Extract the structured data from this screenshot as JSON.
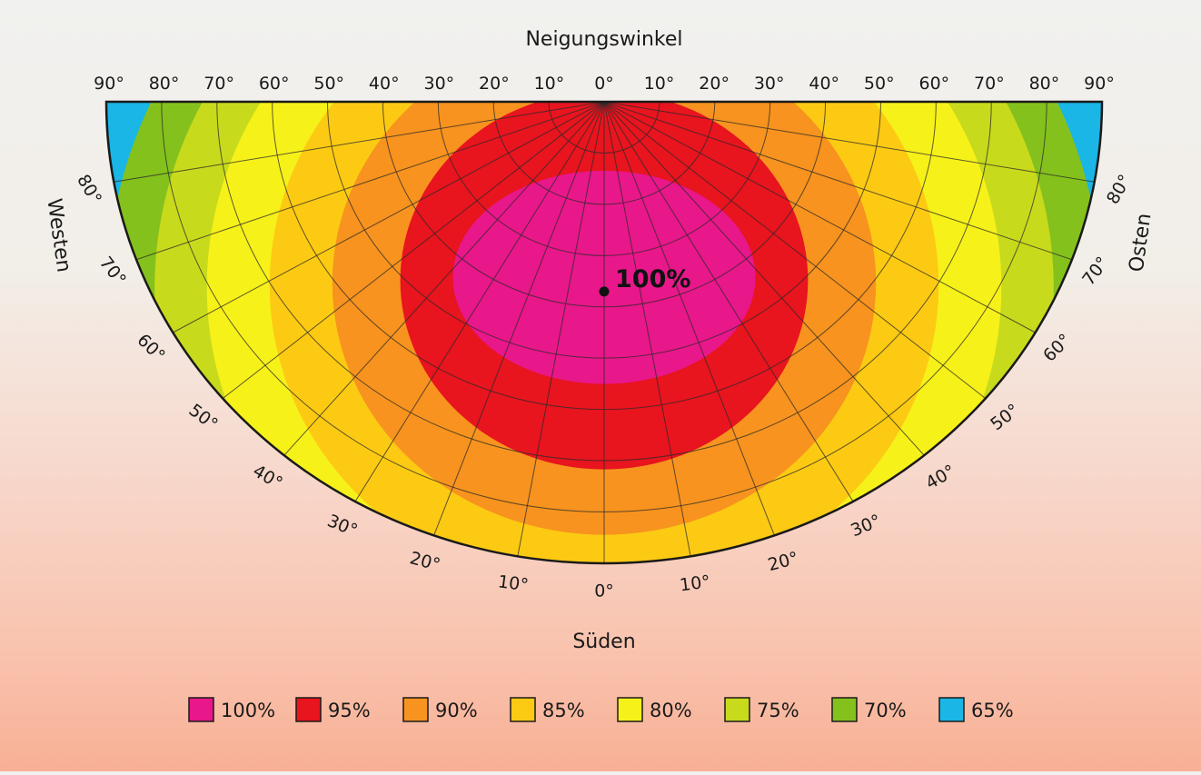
{
  "chart_data": {
    "type": "heatmap",
    "title": "Neigungswinkel",
    "south_label": "Süden",
    "west_label": "Westen",
    "east_label": "Osten",
    "optimum_label": "100%",
    "top_ticks": [
      "90°",
      "80°",
      "70°",
      "60°",
      "50°",
      "40°",
      "30°",
      "20°",
      "10°",
      "0°",
      "10°",
      "20°",
      "30°",
      "40°",
      "50°",
      "60°",
      "70°",
      "80°",
      "90°"
    ],
    "azimuth_ticks_left": [
      "80°",
      "70°",
      "60°",
      "50°",
      "40°",
      "30°",
      "20°",
      "10°"
    ],
    "azimuth_ticks_right": [
      "10°",
      "20°",
      "30°",
      "40°",
      "50°",
      "60°",
      "70°",
      "80°"
    ],
    "azimuth_tick_south": "0°",
    "tilt_range": [
      0,
      90
    ],
    "azimuth_range": [
      -90,
      90
    ],
    "optimum": {
      "tilt": 37,
      "azimuth": 0
    },
    "zones": [
      {
        "label": "100%",
        "value": 100,
        "color": "#e8178a",
        "max_tilt": 67,
        "max_azimuth": 60
      },
      {
        "label": "95%",
        "value": 95,
        "color": "#e8141e",
        "max_tilt": 90,
        "max_azimuth": 90
      },
      {
        "label": "90%",
        "value": 90,
        "color": "#f7931e",
        "max_tilt": 90,
        "max_azimuth": 90
      },
      {
        "label": "85%",
        "value": 85,
        "color": "#fcca13",
        "max_tilt": 90,
        "max_azimuth": 90
      },
      {
        "label": "80%",
        "value": 80,
        "color": "#f7f11a",
        "max_tilt": 90,
        "max_azimuth": 90
      },
      {
        "label": "75%",
        "value": 75,
        "color": "#c8da1c",
        "max_tilt": 90,
        "max_azimuth": 90
      },
      {
        "label": "70%",
        "value": 70,
        "color": "#85c11c",
        "max_tilt": 90,
        "max_azimuth": 90
      },
      {
        "label": "65%",
        "value": 65,
        "color": "#19b6e6",
        "max_tilt": 90,
        "max_azimuth": 90
      }
    ],
    "legend": [
      {
        "label": "100%",
        "color": "#e8178a"
      },
      {
        "label": "95%",
        "color": "#e8141e"
      },
      {
        "label": "90%",
        "color": "#f7931e"
      },
      {
        "label": "85%",
        "color": "#fcca13"
      },
      {
        "label": "80%",
        "color": "#f7f11a"
      },
      {
        "label": "75%",
        "color": "#c8da1c"
      },
      {
        "label": "70%",
        "color": "#85c11c"
      },
      {
        "label": "65%",
        "color": "#19b6e6"
      }
    ],
    "grid": true,
    "legend_position": "bottom"
  }
}
